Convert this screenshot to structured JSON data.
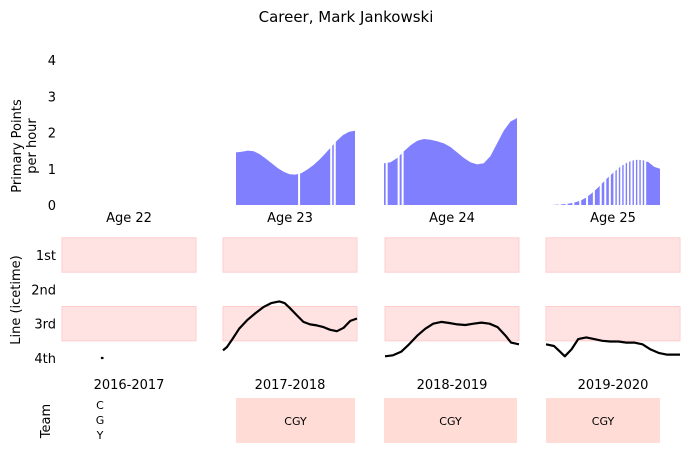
{
  "title": "Career, Mark Jankowski",
  "colors": {
    "area": "#8080ff",
    "gap": "#ffffff",
    "band": "#ffe3e3",
    "band_edge": "#ffcccc",
    "line": "#000000",
    "team_fill": "#ffddd6"
  },
  "chart_data": {
    "type": "area",
    "ylabel": "Primary Points\nper hour",
    "ylim": [
      0,
      4
    ],
    "yticks": [
      "0",
      "1",
      "2",
      "3",
      "4"
    ],
    "panels": [
      {
        "age_label": "Age 22",
        "season": "2016-2017",
        "x": [],
        "y": [],
        "gaps": [],
        "line_x": [
          0.29,
          0.31
        ],
        "line_y": [
          4.0,
          4.0
        ],
        "team_text": "C\nG\nY",
        "team_box": false
      },
      {
        "age_label": "Age 23",
        "season": "2017-2018",
        "x": [
          0.0,
          0.05,
          0.1,
          0.15,
          0.2,
          0.25,
          0.3,
          0.35,
          0.4,
          0.45,
          0.5,
          0.55,
          0.6,
          0.65,
          0.7,
          0.75,
          0.8,
          0.85,
          0.9,
          0.95,
          1.0
        ],
        "y": [
          1.45,
          1.47,
          1.5,
          1.48,
          1.4,
          1.28,
          1.15,
          1.02,
          0.92,
          0.85,
          0.84,
          0.88,
          0.98,
          1.1,
          1.25,
          1.42,
          1.6,
          1.78,
          1.93,
          2.02,
          2.05
        ],
        "gaps": [
          0.53,
          0.8,
          0.83
        ],
        "line_x": [
          0.0,
          0.03,
          0.07,
          0.12,
          0.18,
          0.24,
          0.3,
          0.36,
          0.42,
          0.46,
          0.5,
          0.55,
          0.6,
          0.65,
          0.7,
          0.75,
          0.8,
          0.85,
          0.9,
          0.95,
          1.0
        ],
        "line_y": [
          3.78,
          3.68,
          3.45,
          3.15,
          2.9,
          2.7,
          2.52,
          2.4,
          2.35,
          2.4,
          2.55,
          2.75,
          2.95,
          3.02,
          3.05,
          3.1,
          3.18,
          3.22,
          3.12,
          2.92,
          2.85
        ],
        "team_text": "CGY",
        "team_box": true
      },
      {
        "age_label": "Age 24",
        "season": "2018-2019",
        "x": [
          0.0,
          0.05,
          0.1,
          0.15,
          0.2,
          0.25,
          0.3,
          0.35,
          0.4,
          0.45,
          0.5,
          0.55,
          0.6,
          0.65,
          0.7,
          0.75,
          0.8,
          0.85,
          0.9,
          0.95,
          1.0
        ],
        "y": [
          1.15,
          1.18,
          1.3,
          1.48,
          1.65,
          1.77,
          1.82,
          1.8,
          1.76,
          1.7,
          1.6,
          1.45,
          1.3,
          1.18,
          1.12,
          1.15,
          1.35,
          1.7,
          2.05,
          2.3,
          2.4
        ],
        "gaps": [
          0.02,
          0.11,
          0.14
        ],
        "line_x": [
          0.0,
          0.06,
          0.12,
          0.18,
          0.24,
          0.3,
          0.36,
          0.42,
          0.48,
          0.54,
          0.6,
          0.66,
          0.72,
          0.78,
          0.84,
          0.9,
          0.94,
          1.0
        ],
        "line_y": [
          3.95,
          3.92,
          3.82,
          3.6,
          3.35,
          3.15,
          3.0,
          2.95,
          2.98,
          3.02,
          3.04,
          3.0,
          2.97,
          3.0,
          3.1,
          3.35,
          3.55,
          3.6
        ],
        "team_text": "CGY",
        "team_box": true
      },
      {
        "age_label": "Age 25",
        "season": "2019-2020",
        "x": [
          0.0,
          0.05,
          0.1,
          0.15,
          0.2,
          0.25,
          0.3,
          0.35,
          0.4,
          0.45,
          0.5,
          0.55,
          0.6,
          0.65,
          0.7,
          0.75,
          0.8,
          0.85,
          0.9,
          0.95,
          1.0
        ],
        "y": [
          0.0,
          0.0,
          0.01,
          0.02,
          0.04,
          0.07,
          0.12,
          0.2,
          0.32,
          0.46,
          0.62,
          0.78,
          0.92,
          1.05,
          1.15,
          1.22,
          1.25,
          1.24,
          1.18,
          1.05,
          1.0
        ],
        "gaps": [
          0.12,
          0.18,
          0.24,
          0.3,
          0.36,
          0.42,
          0.48,
          0.52,
          0.56,
          0.6,
          0.63,
          0.66,
          0.69,
          0.72,
          0.75,
          0.78,
          0.81,
          0.84,
          0.87
        ],
        "line_x": [
          0.0,
          0.06,
          0.1,
          0.14,
          0.19,
          0.24,
          0.3,
          0.36,
          0.42,
          0.48,
          0.54,
          0.6,
          0.66,
          0.72,
          0.78,
          0.84,
          0.9,
          0.95,
          1.0
        ],
        "line_y": [
          3.6,
          3.65,
          3.8,
          3.95,
          3.75,
          3.45,
          3.4,
          3.45,
          3.5,
          3.52,
          3.52,
          3.55,
          3.55,
          3.6,
          3.75,
          3.85,
          3.9,
          3.9,
          3.9
        ],
        "team_text": "CGY",
        "team_box": true
      }
    ]
  },
  "line_chart": {
    "ylabel": "Line (icetime)",
    "yticks": [
      "1st",
      "2nd",
      "3rd",
      "4th"
    ],
    "ylim": [
      1,
      4
    ]
  },
  "team_chart": {
    "ylabel": "Team"
  }
}
